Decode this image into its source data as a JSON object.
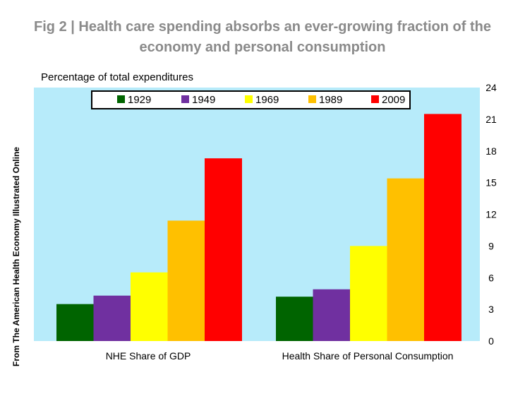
{
  "title": "Fig 2 | Health care spending absorbs an ever-growing fraction of the economy and personal consumption",
  "side_note": "From The American Health Economy Illustrated Online",
  "colors": {
    "plot_bg": "#b7ebfa",
    "1929": "#006400",
    "1949": "#7030a0",
    "1969": "#ffff00",
    "1989": "#ffc000",
    "2009": "#ff0000"
  },
  "chart_data": {
    "type": "bar",
    "ylabel": "Percentage of total expenditures",
    "ylim": [
      0,
      24
    ],
    "yticks": [
      0,
      3,
      6,
      9,
      12,
      15,
      18,
      21,
      24
    ],
    "y_axis_side": "right",
    "legend_placement": "top",
    "grid": false,
    "categories": [
      "NHE Share of GDP",
      "Health Share of Personal Consumption"
    ],
    "series": [
      {
        "name": "1929",
        "values": [
          3.5,
          4.2
        ]
      },
      {
        "name": "1949",
        "values": [
          4.3,
          4.9
        ]
      },
      {
        "name": "1969",
        "values": [
          6.5,
          9.0
        ]
      },
      {
        "name": "1989",
        "values": [
          11.4,
          15.4
        ]
      },
      {
        "name": "2009",
        "values": [
          17.3,
          21.5
        ]
      }
    ]
  }
}
